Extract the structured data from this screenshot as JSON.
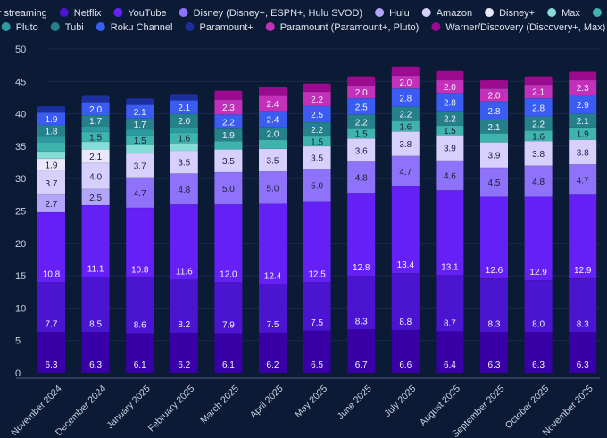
{
  "chart_data": {
    "type": "bar",
    "stacked": true,
    "title": "",
    "xlabel": "",
    "ylabel": "",
    "ylim": [
      0,
      50
    ],
    "yticks": [
      0,
      5,
      10,
      15,
      20,
      25,
      30,
      35,
      40,
      45,
      50
    ],
    "grid": true,
    "legend_position": "top",
    "categories": [
      "November 2024",
      "December 2024",
      "January 2025",
      "February 2025",
      "March 2025",
      "April 2025",
      "May 2025",
      "June 2025",
      "July 2025",
      "August 2025",
      "September 2025",
      "October 2025",
      "November 2025"
    ],
    "series": [
      {
        "name": "Other streaming",
        "color": "#3a00a8",
        "labeled": true,
        "values": [
          6.3,
          6.3,
          6.1,
          6.2,
          6.1,
          6.2,
          6.5,
          6.7,
          6.6,
          6.4,
          6.3,
          6.3,
          6.3
        ]
      },
      {
        "name": "Netflix",
        "color": "#4a14d0",
        "labeled": true,
        "values": [
          7.7,
          8.5,
          8.6,
          8.2,
          7.9,
          7.5,
          7.5,
          8.3,
          8.8,
          8.7,
          8.3,
          8.0,
          8.3
        ]
      },
      {
        "name": "YouTube",
        "color": "#6420f5",
        "labeled": true,
        "values": [
          10.8,
          11.1,
          10.8,
          11.6,
          12.0,
          12.4,
          12.5,
          12.8,
          13.4,
          13.1,
          12.6,
          12.9,
          12.9
        ]
      },
      {
        "name": "Disney (Disney+, ESPN+, Hulu SVOD)",
        "color": "#8f72fa",
        "labeled": true,
        "values": [
          null,
          null,
          4.7,
          4.8,
          5.0,
          5.0,
          5.0,
          4.8,
          4.7,
          4.6,
          4.5,
          4.8,
          4.7
        ]
      },
      {
        "name": "Hulu",
        "color": "#b2a5fa",
        "labeled": true,
        "values": [
          2.7,
          2.5,
          null,
          null,
          null,
          null,
          null,
          null,
          null,
          null,
          null,
          null,
          null
        ]
      },
      {
        "name": "Amazon",
        "color": "#d8d0fc",
        "labeled": true,
        "values": [
          3.7,
          4.0,
          3.7,
          3.5,
          3.5,
          3.5,
          3.5,
          3.6,
          3.8,
          3.9,
          3.9,
          3.8,
          3.8
        ]
      },
      {
        "name": "Disney+",
        "color": "#ece8fc",
        "labeled": true,
        "values": [
          1.9,
          2.1,
          null,
          null,
          null,
          null,
          null,
          null,
          null,
          null,
          null,
          null,
          null
        ]
      },
      {
        "name": "Max",
        "color": "#86dcd6",
        "labeled": false,
        "values": [
          1.1,
          1.2,
          1.3,
          1.2,
          null,
          null,
          null,
          null,
          null,
          null,
          null,
          null,
          null
        ]
      },
      {
        "name": "Peacock",
        "color": "#3fb3ad",
        "labeled": true,
        "values": [
          1.4,
          1.5,
          1.5,
          1.6,
          1.3,
          1.4,
          1.5,
          1.5,
          1.6,
          1.5,
          1.4,
          1.6,
          1.9
        ]
      },
      {
        "name": "Pluto",
        "color": "#2c9ba0",
        "labeled": false,
        "values": [
          0.9,
          0.9,
          0.9,
          0.9,
          null,
          null,
          null,
          null,
          null,
          null,
          null,
          null,
          null
        ]
      },
      {
        "name": "Tubi",
        "color": "#26808a",
        "labeled": true,
        "values": [
          1.8,
          1.7,
          1.7,
          2.0,
          1.9,
          2.0,
          2.2,
          2.2,
          2.2,
          2.2,
          2.1,
          2.2,
          2.1
        ]
      },
      {
        "name": "Roku Channel",
        "color": "#3a5cf0",
        "labeled": true,
        "values": [
          1.9,
          2.0,
          2.1,
          2.1,
          2.2,
          2.4,
          2.5,
          2.5,
          2.8,
          2.8,
          2.8,
          2.8,
          2.9
        ]
      },
      {
        "name": "Paramount+",
        "color": "#1c2f9e",
        "labeled": false,
        "values": [
          1.0,
          1.0,
          1.0,
          1.0,
          null,
          null,
          null,
          null,
          null,
          null,
          null,
          null,
          null
        ]
      },
      {
        "name": "Paramount (Paramount+, Pluto)",
        "color": "#c331bb",
        "labeled": true,
        "values": [
          null,
          null,
          null,
          null,
          2.3,
          2.4,
          2.2,
          2.0,
          2.0,
          2.0,
          2.0,
          2.1,
          2.3
        ]
      },
      {
        "name": "Warner/Discovery (Discovery+, Max)",
        "color": "#9c0a90",
        "labeled": false,
        "values": [
          null,
          null,
          null,
          null,
          1.4,
          1.4,
          1.3,
          1.4,
          1.4,
          1.4,
          1.3,
          1.3,
          1.3
        ]
      }
    ],
    "label_hidden_below": 1.5
  }
}
